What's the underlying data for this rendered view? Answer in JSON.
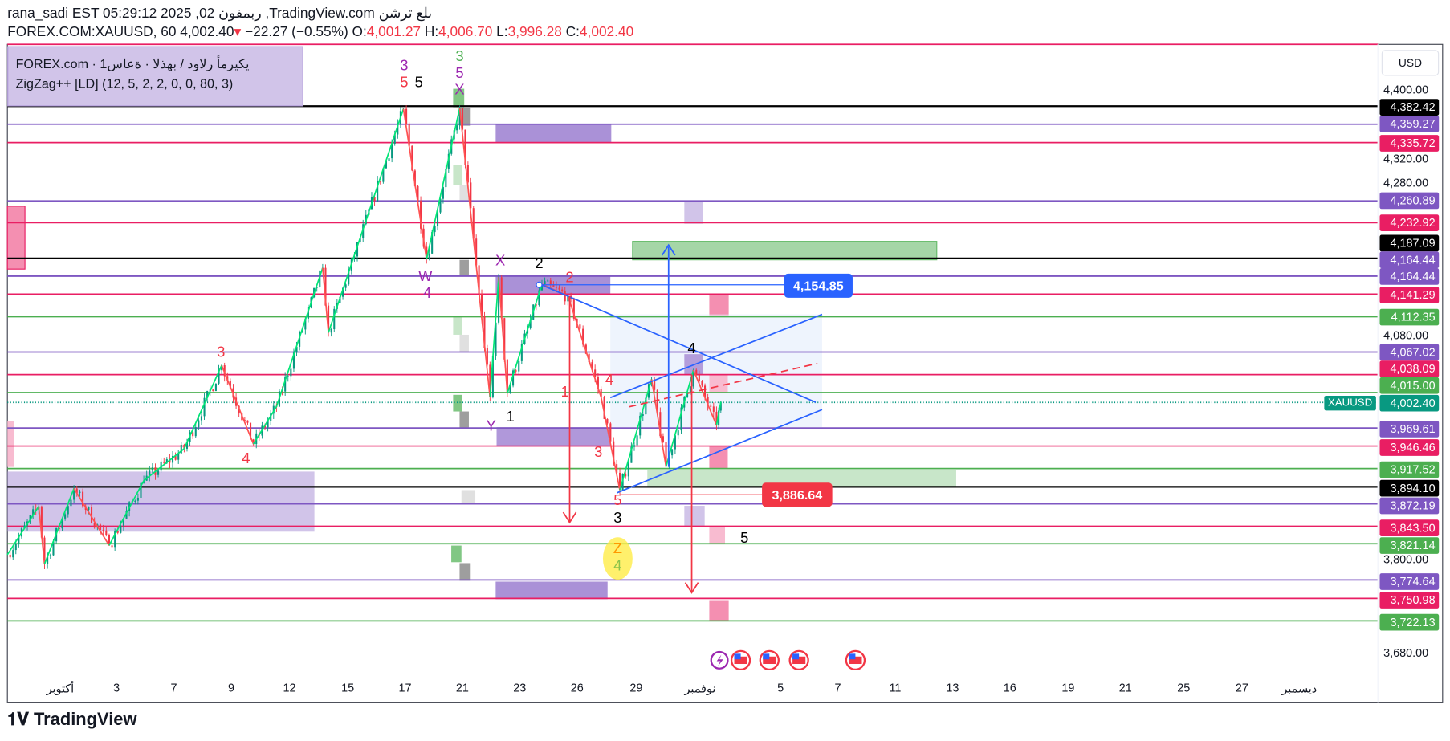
{
  "header": {
    "line1": "rana_sadi EST 05:29:12 2025 ,02 ربمفون ,TradingView.com ىلع ترشن",
    "symbol": "FOREX.COM:XAUUSD, 60",
    "last": "4,002.40",
    "change": "−22.27 (−0.55%)",
    "o_label": "O:",
    "o": "4,001.27",
    "h_label": "H:",
    "h": "4,006.70",
    "l_label": "L:",
    "l": "3,996.28",
    "c_label": "C:",
    "c": "4,002.40"
  },
  "legend": {
    "line1": "FOREX.com · يكيرمأ رلاود / بهذلا · ةعاس1",
    "line2": "ZigZag++ [LD] (12, 5, 2, 2, 0, 0, 80, 3)"
  },
  "currency": "USD",
  "symbol_tag": "XAUUSD",
  "branding": "TradingView",
  "colors": {
    "up": "#089981",
    "down": "#f23645",
    "black": "#000000",
    "purple": "#7e57c2",
    "red": "#e91e63",
    "green": "#4caf50",
    "teal": "#089981",
    "blue": "#2962ff"
  },
  "chart_data": {
    "type": "candlestick",
    "ylim": [
      3660,
      4440
    ],
    "y_ticks": [
      "4,400.00",
      "4,320.00",
      "4,280.00",
      "4,080.00",
      "3,800.00",
      "3,680.00"
    ],
    "x_ticks": [
      "أكتوبر",
      "3",
      "7",
      "9",
      "12",
      "15",
      "17",
      "21",
      "23",
      "26",
      "29",
      "نوفمبر",
      "5",
      "7",
      "11",
      "13",
      "16",
      "19",
      "21",
      "25",
      "27",
      "ديسمبر"
    ],
    "levels": [
      {
        "price": 4382.42,
        "label": "4,382.42",
        "color": "black"
      },
      {
        "price": 4359.27,
        "label": "4,359.27",
        "color": "purple"
      },
      {
        "price": 4335.72,
        "label": "4,335.72",
        "color": "red"
      },
      {
        "price": 4260.89,
        "label": "4,260.89",
        "color": "purple"
      },
      {
        "price": 4232.92,
        "label": "4,232.92",
        "color": "red"
      },
      {
        "price": 4187.09,
        "label": "4,187.09",
        "color": "black"
      },
      {
        "price": 4164.44,
        "label": "4,164.44",
        "color": "purple"
      },
      {
        "price": 4164.44,
        "label": "4,164.44",
        "color": "purple"
      },
      {
        "price": 4141.29,
        "label": "4,141.29",
        "color": "red"
      },
      {
        "price": 4112.35,
        "label": "4,112.35",
        "color": "green"
      },
      {
        "price": 4067.02,
        "label": "4,067.02",
        "color": "purple"
      },
      {
        "price": 4038.09,
        "label": "4,038.09",
        "color": "red"
      },
      {
        "price": 4015.0,
        "label": "4,015.00",
        "color": "green"
      },
      {
        "price": 4002.4,
        "label": "4,002.40",
        "color": "teal"
      },
      {
        "price": 3969.61,
        "label": "3,969.61",
        "color": "purple"
      },
      {
        "price": 3946.46,
        "label": "3,946.46",
        "color": "red"
      },
      {
        "price": 3917.52,
        "label": "3,917.52",
        "color": "green"
      },
      {
        "price": 3894.1,
        "label": "3,894.10",
        "color": "black"
      },
      {
        "price": 3872.19,
        "label": "3,872.19",
        "color": "purple"
      },
      {
        "price": 3843.5,
        "label": "3,843.50",
        "color": "red"
      },
      {
        "price": 3821.14,
        "label": "3,821.14",
        "color": "green"
      },
      {
        "price": 3774.64,
        "label": "3,774.64",
        "color": "purple"
      },
      {
        "price": 3750.98,
        "label": "3,750.98",
        "color": "red"
      },
      {
        "price": 3722.13,
        "label": "3,722.13",
        "color": "green"
      }
    ],
    "zigzag_pivots": [
      {
        "day": -1.83,
        "price": 3807
      },
      {
        "day": -0.74,
        "price": 3869
      },
      {
        "day": -0.54,
        "price": 3795
      },
      {
        "day": 0.48,
        "price": 3892
      },
      {
        "day": 1.7,
        "price": 3819
      },
      {
        "day": 2.9,
        "price": 3902
      },
      {
        "day": 4.3,
        "price": 3943
      },
      {
        "day": 5.6,
        "price": 4050
      },
      {
        "day": 6.7,
        "price": 3949
      },
      {
        "day": 7.5,
        "price": 3997
      },
      {
        "day": 9.1,
        "price": 4175
      },
      {
        "day": 9.3,
        "price": 4092
      },
      {
        "day": 11.9,
        "price": 4379
      },
      {
        "day": 12.7,
        "price": 4186
      },
      {
        "day": 13.85,
        "price": 4380
      },
      {
        "day": 14.9,
        "price": 4009
      },
      {
        "day": 15.2,
        "price": 4163
      },
      {
        "day": 15.5,
        "price": 4014
      },
      {
        "day": 16.7,
        "price": 4154
      },
      {
        "day": 17.6,
        "price": 4139
      },
      {
        "day": 18.75,
        "price": 4009
      },
      {
        "day": 19.4,
        "price": 3890
      },
      {
        "day": 20.5,
        "price": 4032
      },
      {
        "day": 21,
        "price": 3920
      },
      {
        "day": 21.95,
        "price": 4044
      },
      {
        "day": 22.75,
        "price": 3973
      },
      {
        "day": 22.9,
        "price": 4003
      }
    ],
    "price_tags": [
      "4,154.85",
      "3,886.64"
    ],
    "wave_labels": [
      "3",
      "5",
      "5",
      "3",
      "5",
      "X",
      "X",
      "2",
      "2",
      "W",
      "4",
      "3",
      "4",
      "Y",
      "1",
      "1",
      "4",
      "3",
      "5",
      "3",
      "Z",
      "4",
      "4",
      "5"
    ]
  }
}
